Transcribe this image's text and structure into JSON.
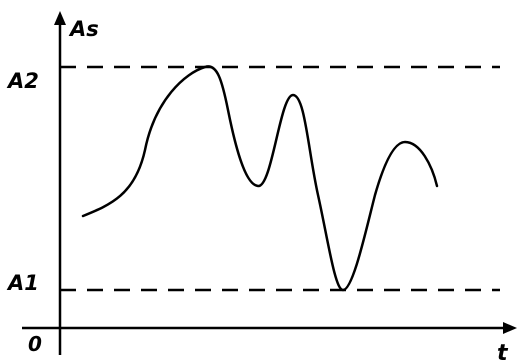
{
  "diagram": {
    "y_axis_label": "As",
    "x_axis_label": "t",
    "origin_label": "0",
    "upper_level_label": "A2",
    "lower_level_label": "A1"
  },
  "style": {
    "stroke_color": "#000000",
    "background": "#ffffff"
  }
}
